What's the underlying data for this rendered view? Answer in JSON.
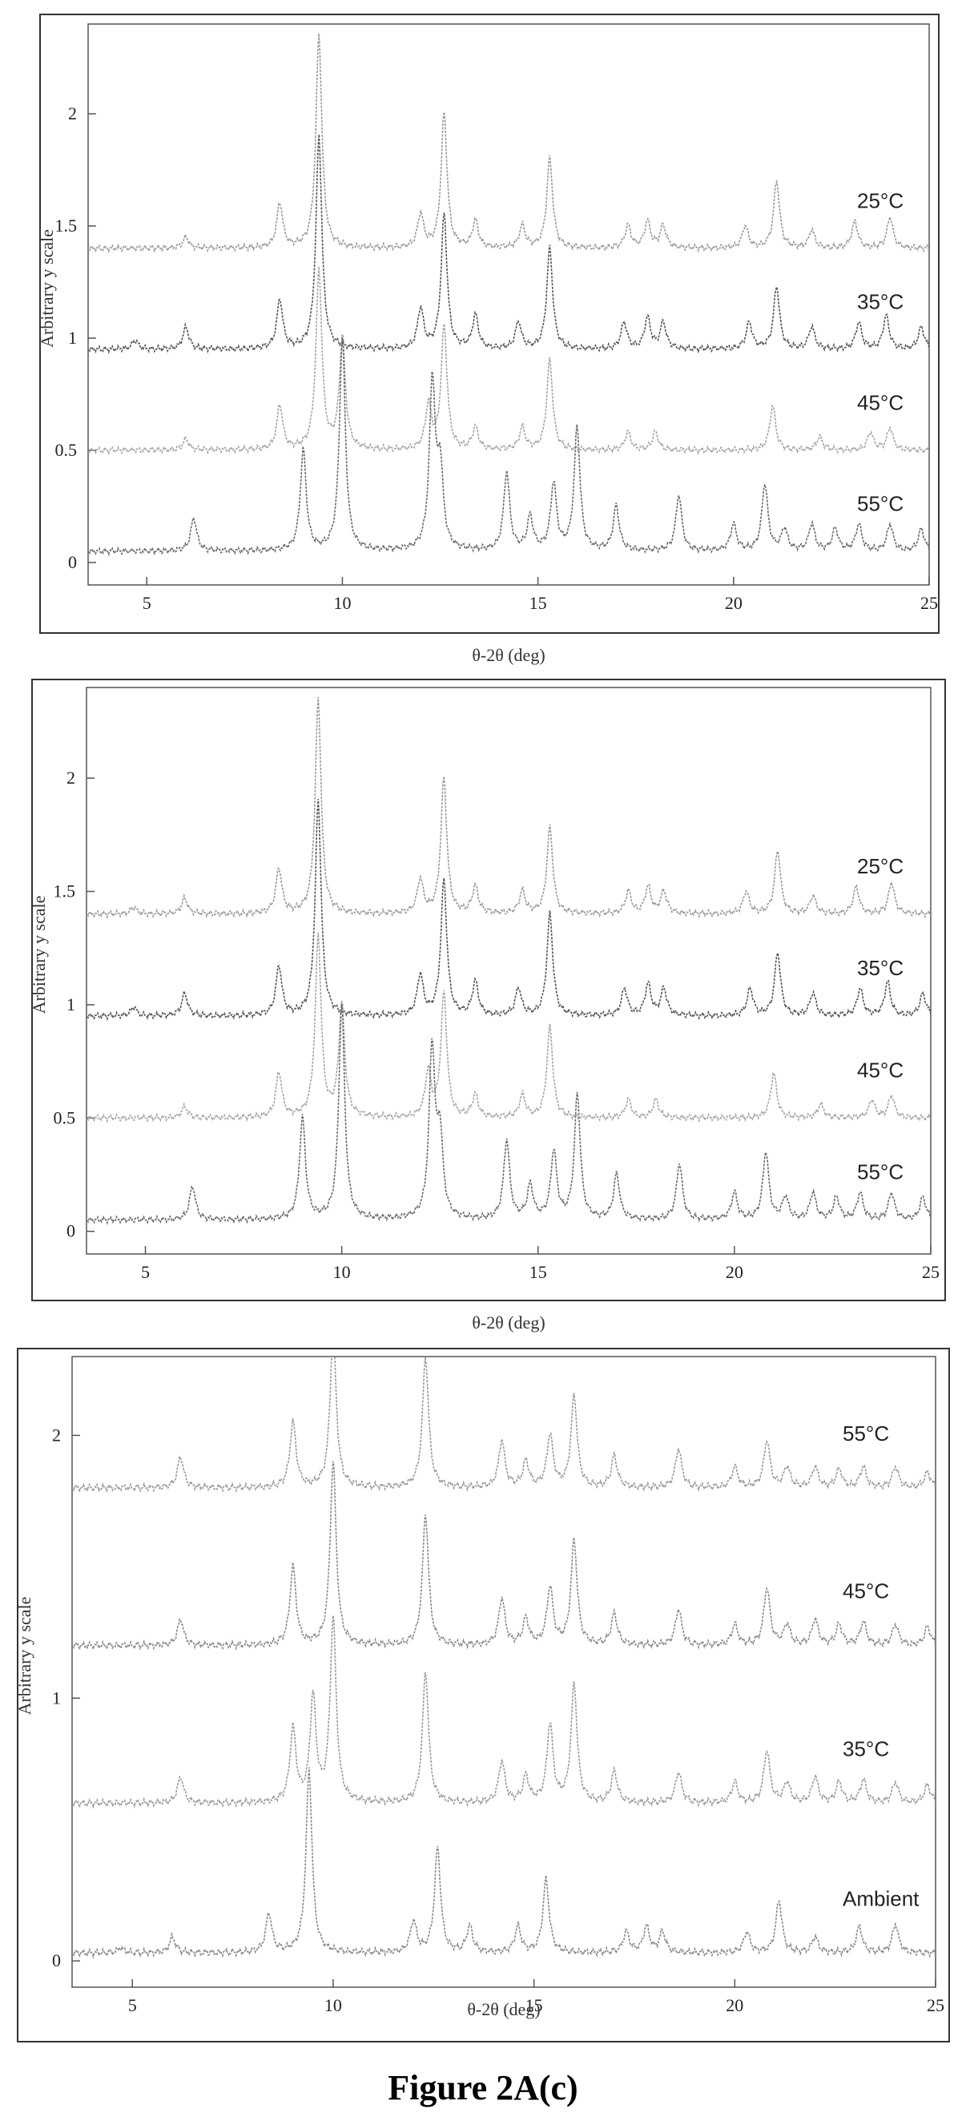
{
  "figure": {
    "caption": "Figure 2A(c)"
  },
  "chart_data": [
    {
      "type": "line",
      "xlabel": "θ-2θ (deg)",
      "ylabel": "Arbitrary y scale",
      "xlim": [
        3.5,
        25
      ],
      "ylim": [
        -0.1,
        2.4
      ],
      "x_ticks": [
        "5",
        "10",
        "15",
        "20",
        "25"
      ],
      "y_ticks": [
        "0",
        "0.5",
        "1",
        "1.5",
        "2"
      ],
      "grid": false,
      "series": [
        {
          "name": "25°C",
          "color": "#9a9a9a",
          "offset": 1.4,
          "peaks": [
            [
              6.0,
              0.05
            ],
            [
              8.4,
              0.2
            ],
            [
              9.4,
              0.95
            ],
            [
              12.0,
              0.15
            ],
            [
              12.6,
              0.6
            ],
            [
              13.4,
              0.12
            ],
            [
              14.6,
              0.1
            ],
            [
              15.3,
              0.4
            ],
            [
              17.3,
              0.1
            ],
            [
              17.8,
              0.12
            ],
            [
              18.2,
              0.1
            ],
            [
              20.3,
              0.1
            ],
            [
              21.1,
              0.3
            ],
            [
              22.0,
              0.08
            ],
            [
              23.1,
              0.12
            ],
            [
              24.0,
              0.14
            ]
          ]
        },
        {
          "name": "35°C",
          "color": "#555555",
          "offset": 0.95,
          "peaks": [
            [
              4.7,
              0.04
            ],
            [
              6.0,
              0.1
            ],
            [
              8.4,
              0.22
            ],
            [
              9.4,
              0.95
            ],
            [
              12.0,
              0.18
            ],
            [
              12.6,
              0.6
            ],
            [
              13.4,
              0.15
            ],
            [
              14.5,
              0.12
            ],
            [
              15.3,
              0.45
            ],
            [
              17.2,
              0.12
            ],
            [
              17.8,
              0.14
            ],
            [
              18.2,
              0.12
            ],
            [
              20.4,
              0.12
            ],
            [
              21.1,
              0.28
            ],
            [
              22.0,
              0.1
            ],
            [
              23.2,
              0.12
            ],
            [
              23.9,
              0.15
            ],
            [
              24.8,
              0.1
            ]
          ]
        },
        {
          "name": "45°C",
          "color": "#a5a5a5",
          "offset": 0.5,
          "peaks": [
            [
              6.0,
              0.05
            ],
            [
              8.4,
              0.2
            ],
            [
              9.4,
              0.8
            ],
            [
              10.0,
              0.5
            ],
            [
              12.2,
              0.2
            ],
            [
              12.6,
              0.55
            ],
            [
              13.4,
              0.1
            ],
            [
              14.6,
              0.1
            ],
            [
              15.3,
              0.4
            ],
            [
              17.3,
              0.08
            ],
            [
              18.0,
              0.08
            ],
            [
              21.0,
              0.2
            ],
            [
              22.2,
              0.06
            ],
            [
              23.5,
              0.08
            ],
            [
              24.0,
              0.1
            ]
          ]
        },
        {
          "name": "55°C",
          "color": "#6a6a6a",
          "offset": 0.05,
          "peaks": [
            [
              6.2,
              0.15
            ],
            [
              9.0,
              0.45
            ],
            [
              10.0,
              0.95
            ],
            [
              12.3,
              0.75
            ],
            [
              12.5,
              0.35
            ],
            [
              14.2,
              0.35
            ],
            [
              14.8,
              0.15
            ],
            [
              15.4,
              0.3
            ],
            [
              16.0,
              0.55
            ],
            [
              17.0,
              0.2
            ],
            [
              18.6,
              0.25
            ],
            [
              20.0,
              0.12
            ],
            [
              20.8,
              0.3
            ],
            [
              21.3,
              0.1
            ],
            [
              22.0,
              0.12
            ],
            [
              22.6,
              0.1
            ],
            [
              23.2,
              0.12
            ],
            [
              24.0,
              0.12
            ],
            [
              24.8,
              0.1
            ]
          ]
        }
      ]
    },
    {
      "type": "line",
      "xlabel": "θ-2θ (deg)",
      "ylabel": "Arbitrary y scale",
      "xlim": [
        3.5,
        25
      ],
      "ylim": [
        -0.1,
        2.4
      ],
      "x_ticks": [
        "5",
        "10",
        "15",
        "20",
        "25"
      ],
      "y_ticks": [
        "0",
        "0.5",
        "1",
        "1.5",
        "2"
      ],
      "grid": false,
      "series": [
        {
          "name": "25°C",
          "color": "#9a9a9a",
          "offset": 1.4,
          "peaks": [
            [
              4.7,
              0.03
            ],
            [
              6.0,
              0.07
            ],
            [
              8.4,
              0.2
            ],
            [
              9.4,
              0.95
            ],
            [
              12.0,
              0.15
            ],
            [
              12.6,
              0.6
            ],
            [
              13.4,
              0.12
            ],
            [
              14.6,
              0.1
            ],
            [
              15.3,
              0.38
            ],
            [
              17.3,
              0.1
            ],
            [
              17.8,
              0.12
            ],
            [
              18.2,
              0.1
            ],
            [
              20.3,
              0.1
            ],
            [
              21.1,
              0.28
            ],
            [
              22.0,
              0.08
            ],
            [
              23.1,
              0.12
            ],
            [
              24.0,
              0.14
            ]
          ]
        },
        {
          "name": "35°C",
          "color": "#555555",
          "offset": 0.95,
          "peaks": [
            [
              4.7,
              0.04
            ],
            [
              6.0,
              0.1
            ],
            [
              8.4,
              0.22
            ],
            [
              9.4,
              0.95
            ],
            [
              12.0,
              0.18
            ],
            [
              12.6,
              0.6
            ],
            [
              13.4,
              0.15
            ],
            [
              14.5,
              0.12
            ],
            [
              15.3,
              0.45
            ],
            [
              17.2,
              0.12
            ],
            [
              17.8,
              0.14
            ],
            [
              18.2,
              0.12
            ],
            [
              20.4,
              0.12
            ],
            [
              21.1,
              0.28
            ],
            [
              22.0,
              0.1
            ],
            [
              23.2,
              0.12
            ],
            [
              23.9,
              0.15
            ],
            [
              24.8,
              0.1
            ]
          ]
        },
        {
          "name": "45°C",
          "color": "#a5a5a5",
          "offset": 0.5,
          "peaks": [
            [
              6.0,
              0.05
            ],
            [
              8.4,
              0.2
            ],
            [
              9.4,
              0.8
            ],
            [
              10.0,
              0.5
            ],
            [
              12.2,
              0.2
            ],
            [
              12.6,
              0.55
            ],
            [
              13.4,
              0.1
            ],
            [
              14.6,
              0.1
            ],
            [
              15.3,
              0.4
            ],
            [
              17.3,
              0.08
            ],
            [
              18.0,
              0.08
            ],
            [
              21.0,
              0.2
            ],
            [
              22.2,
              0.06
            ],
            [
              23.5,
              0.08
            ],
            [
              24.0,
              0.1
            ]
          ]
        },
        {
          "name": "55°C",
          "color": "#6a6a6a",
          "offset": 0.05,
          "peaks": [
            [
              6.2,
              0.15
            ],
            [
              9.0,
              0.45
            ],
            [
              10.0,
              0.95
            ],
            [
              12.3,
              0.75
            ],
            [
              12.5,
              0.35
            ],
            [
              14.2,
              0.35
            ],
            [
              14.8,
              0.15
            ],
            [
              15.4,
              0.3
            ],
            [
              16.0,
              0.55
            ],
            [
              17.0,
              0.2
            ],
            [
              18.6,
              0.25
            ],
            [
              20.0,
              0.12
            ],
            [
              20.8,
              0.3
            ],
            [
              21.3,
              0.1
            ],
            [
              22.0,
              0.12
            ],
            [
              22.6,
              0.1
            ],
            [
              23.2,
              0.12
            ],
            [
              24.0,
              0.12
            ],
            [
              24.8,
              0.1
            ]
          ]
        }
      ]
    },
    {
      "type": "line",
      "xlabel": "θ-2θ (deg)",
      "ylabel": "Arbitrary y scale",
      "xlim": [
        3.5,
        25
      ],
      "ylim": [
        -0.1,
        2.3
      ],
      "x_ticks": [
        "5",
        "10",
        "15",
        "20",
        "25"
      ],
      "y_ticks": [
        "0",
        "1",
        "2"
      ],
      "grid": false,
      "series": [
        {
          "name": "55°C",
          "color": "#9a9a9a",
          "offset": 1.8,
          "peaks": [
            [
              6.2,
              0.12
            ],
            [
              9.0,
              0.25
            ],
            [
              10.0,
              0.6
            ],
            [
              12.3,
              0.5
            ],
            [
              14.2,
              0.18
            ],
            [
              14.8,
              0.1
            ],
            [
              15.4,
              0.2
            ],
            [
              16.0,
              0.35
            ],
            [
              17.0,
              0.12
            ],
            [
              18.6,
              0.15
            ],
            [
              20.0,
              0.08
            ],
            [
              20.8,
              0.18
            ],
            [
              21.3,
              0.08
            ],
            [
              22.0,
              0.08
            ],
            [
              22.6,
              0.07
            ],
            [
              23.2,
              0.08
            ],
            [
              24.0,
              0.08
            ],
            [
              24.8,
              0.06
            ]
          ]
        },
        {
          "name": "45°C",
          "color": "#8a8a8a",
          "offset": 1.2,
          "peaks": [
            [
              6.2,
              0.1
            ],
            [
              9.0,
              0.3
            ],
            [
              10.0,
              0.7
            ],
            [
              12.3,
              0.5
            ],
            [
              14.2,
              0.18
            ],
            [
              14.8,
              0.1
            ],
            [
              15.4,
              0.22
            ],
            [
              16.0,
              0.4
            ],
            [
              17.0,
              0.12
            ],
            [
              18.6,
              0.14
            ],
            [
              20.0,
              0.08
            ],
            [
              20.8,
              0.22
            ],
            [
              21.3,
              0.08
            ],
            [
              22.0,
              0.1
            ],
            [
              22.6,
              0.08
            ],
            [
              23.2,
              0.09
            ],
            [
              24.0,
              0.08
            ],
            [
              24.8,
              0.07
            ]
          ]
        },
        {
          "name": "35°C",
          "color": "#9a9a9a",
          "offset": 0.6,
          "peaks": [
            [
              6.2,
              0.1
            ],
            [
              9.0,
              0.28
            ],
            [
              9.5,
              0.4
            ],
            [
              10.0,
              0.7
            ],
            [
              12.3,
              0.5
            ],
            [
              14.2,
              0.16
            ],
            [
              14.8,
              0.1
            ],
            [
              15.4,
              0.3
            ],
            [
              16.0,
              0.45
            ],
            [
              17.0,
              0.12
            ],
            [
              18.6,
              0.12
            ],
            [
              20.0,
              0.08
            ],
            [
              20.8,
              0.2
            ],
            [
              21.3,
              0.08
            ],
            [
              22.0,
              0.1
            ],
            [
              22.6,
              0.08
            ],
            [
              23.2,
              0.09
            ],
            [
              24.0,
              0.08
            ],
            [
              24.8,
              0.07
            ]
          ]
        },
        {
          "name": "Ambient",
          "color": "#8a8a8a",
          "offset": 0.03,
          "peaks": [
            [
              4.7,
              0.02
            ],
            [
              6.0,
              0.06
            ],
            [
              8.4,
              0.15
            ],
            [
              9.4,
              0.7
            ],
            [
              12.0,
              0.12
            ],
            [
              12.6,
              0.4
            ],
            [
              13.4,
              0.1
            ],
            [
              14.6,
              0.1
            ],
            [
              15.3,
              0.28
            ],
            [
              17.3,
              0.08
            ],
            [
              17.8,
              0.1
            ],
            [
              18.2,
              0.08
            ],
            [
              20.3,
              0.08
            ],
            [
              21.1,
              0.2
            ],
            [
              22.0,
              0.06
            ],
            [
              23.1,
              0.1
            ],
            [
              24.0,
              0.11
            ]
          ]
        }
      ]
    }
  ]
}
